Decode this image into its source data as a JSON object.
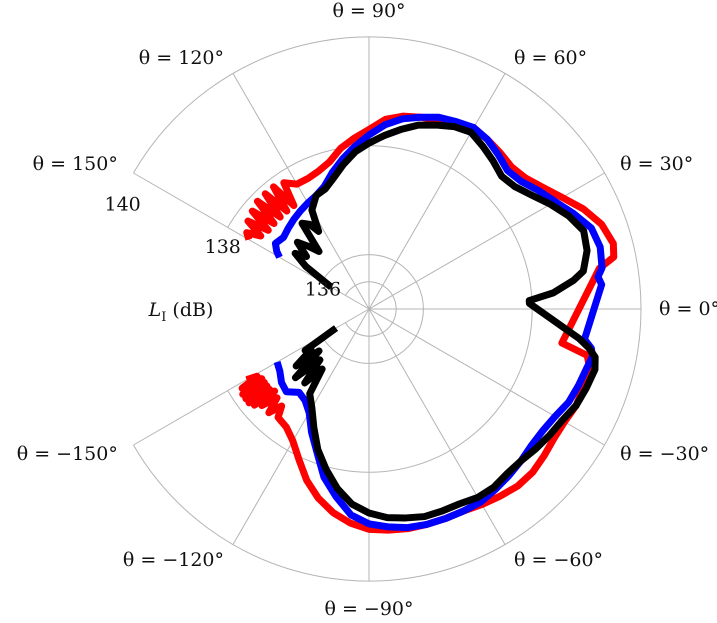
{
  "chart_data": {
    "type": "polar-line",
    "radial_axis": {
      "label": "(dB)",
      "label_symbol": "L",
      "label_subscript": "I",
      "range": [
        135,
        140
      ],
      "ticks": [
        136,
        138,
        140
      ],
      "tick_labels": [
        "136",
        "138",
        "140"
      ]
    },
    "angular_axis": {
      "unit": "deg",
      "sector": [
        -150,
        150
      ],
      "grid_angles": [
        -150,
        -120,
        -90,
        -60,
        -30,
        0,
        30,
        60,
        90,
        120,
        150
      ],
      "tick_labels": [
        "θ = −150°",
        "θ = −120°",
        "θ = −90°",
        "θ = −60°",
        "θ = −30°",
        "θ = 0°",
        "θ = 30°",
        "θ = 60°",
        "θ = 90°",
        "θ = 120°",
        "θ = 150°"
      ]
    },
    "grid": true,
    "series": [
      {
        "color": "#ff0000",
        "linewidth": 7,
        "points": [
          [
            -150,
            137.6
          ],
          [
            -149,
            137.4
          ],
          [
            -148,
            137.75
          ],
          [
            -147,
            137.35
          ],
          [
            -146,
            137.8
          ],
          [
            -145,
            137.35
          ],
          [
            -144,
            137.8
          ],
          [
            -143,
            137.35
          ],
          [
            -142,
            137.8
          ],
          [
            -141,
            137.35
          ],
          [
            -140,
            137.75
          ],
          [
            -139,
            137.3
          ],
          [
            -138,
            137.65
          ],
          [
            -136,
            137.35
          ],
          [
            -134,
            137.65
          ],
          [
            -132,
            137.4
          ],
          [
            -130,
            137.6
          ],
          [
            -125,
            137.65
          ],
          [
            -120,
            137.8
          ],
          [
            -115,
            138.05
          ],
          [
            -110,
            138.35
          ],
          [
            -105,
            138.6
          ],
          [
            -100,
            138.8
          ],
          [
            -95,
            138.95
          ],
          [
            -90,
            139.05
          ],
          [
            -85,
            139.08
          ],
          [
            -80,
            139.1
          ],
          [
            -75,
            139.1
          ],
          [
            -70,
            139.1
          ],
          [
            -65,
            139.1
          ],
          [
            -60,
            139.15
          ],
          [
            -55,
            139.2
          ],
          [
            -50,
            139.25
          ],
          [
            -45,
            139.25
          ],
          [
            -40,
            139.2
          ],
          [
            -35,
            139.15
          ],
          [
            -30,
            139.15
          ],
          [
            -25,
            139.2
          ],
          [
            -20,
            139.2
          ],
          [
            -15,
            139.2
          ],
          [
            -12,
            139.1
          ],
          [
            -10,
            138.6
          ],
          [
            10,
            139.3
          ],
          [
            12,
            139.6
          ],
          [
            15,
            139.65
          ],
          [
            20,
            139.55
          ],
          [
            25,
            139.35
          ],
          [
            30,
            139.1
          ],
          [
            35,
            138.9
          ],
          [
            40,
            138.75
          ],
          [
            45,
            138.7
          ],
          [
            50,
            138.75
          ],
          [
            55,
            138.8
          ],
          [
            60,
            138.85
          ],
          [
            65,
            138.75
          ],
          [
            70,
            138.7
          ],
          [
            75,
            138.65
          ],
          [
            80,
            138.6
          ],
          [
            85,
            138.5
          ],
          [
            90,
            138.3
          ],
          [
            95,
            138.15
          ],
          [
            100,
            138.0
          ],
          [
            105,
            137.8
          ],
          [
            110,
            137.7
          ],
          [
            115,
            137.65
          ],
          [
            120,
            137.65
          ],
          [
            124,
            137.8
          ],
          [
            126,
            137.35
          ],
          [
            128,
            137.85
          ],
          [
            130,
            137.35
          ],
          [
            132,
            137.85
          ],
          [
            134,
            137.35
          ],
          [
            136,
            137.85
          ],
          [
            138,
            137.35
          ],
          [
            140,
            137.8
          ],
          [
            142,
            137.35
          ],
          [
            144,
            137.75
          ],
          [
            146,
            137.4
          ],
          [
            148,
            137.65
          ],
          [
            150,
            137.55
          ]
        ]
      },
      {
        "color": "#0000ff",
        "linewidth": 7,
        "points": [
          [
            -150,
            136.95
          ],
          [
            -145,
            137.0
          ],
          [
            -140,
            137.1
          ],
          [
            -135,
            137.15
          ],
          [
            -130,
            137.0
          ],
          [
            -125,
            137.05
          ],
          [
            -120,
            137.2
          ],
          [
            -115,
            137.5
          ],
          [
            -110,
            137.8
          ],
          [
            -105,
            138.2
          ],
          [
            -100,
            138.5
          ],
          [
            -95,
            138.8
          ],
          [
            -90,
            138.95
          ],
          [
            -85,
            139.02
          ],
          [
            -80,
            139.08
          ],
          [
            -75,
            139.1
          ],
          [
            -70,
            139.1
          ],
          [
            -65,
            139.1
          ],
          [
            -60,
            139.1
          ],
          [
            -55,
            139.05
          ],
          [
            -50,
            139.0
          ],
          [
            -45,
            138.95
          ],
          [
            -40,
            138.9
          ],
          [
            -35,
            138.9
          ],
          [
            -30,
            138.95
          ],
          [
            -25,
            139.05
          ],
          [
            -20,
            139.1
          ],
          [
            -15,
            139.15
          ],
          [
            -12,
            139.2
          ],
          [
            -10,
            139.15
          ],
          [
            -8,
            139.0
          ],
          [
            6,
            139.3
          ],
          [
            8,
            139.25
          ],
          [
            10,
            139.35
          ],
          [
            15,
            139.4
          ],
          [
            20,
            139.35
          ],
          [
            25,
            139.15
          ],
          [
            30,
            138.95
          ],
          [
            35,
            138.8
          ],
          [
            40,
            138.65
          ],
          [
            45,
            138.6
          ],
          [
            50,
            138.7
          ],
          [
            55,
            138.8
          ],
          [
            60,
            138.85
          ],
          [
            65,
            138.8
          ],
          [
            70,
            138.75
          ],
          [
            75,
            138.65
          ],
          [
            80,
            138.55
          ],
          [
            85,
            138.4
          ],
          [
            90,
            138.2
          ],
          [
            95,
            138.0
          ],
          [
            100,
            137.8
          ],
          [
            105,
            137.6
          ],
          [
            110,
            137.4
          ],
          [
            115,
            137.3
          ],
          [
            120,
            137.25
          ],
          [
            125,
            137.2
          ],
          [
            130,
            137.15
          ],
          [
            135,
            137.1
          ],
          [
            140,
            137.05
          ],
          [
            145,
            137.1
          ],
          [
            148,
            137.0
          ],
          [
            150,
            136.9
          ]
        ]
      },
      {
        "color": "#000000",
        "linewidth": 7,
        "points": [
          [
            -150,
            135.7
          ],
          [
            -147,
            136.4
          ],
          [
            -145,
            136.3
          ],
          [
            -142,
            136.7
          ],
          [
            -140,
            136.2
          ],
          [
            -137,
            136.85
          ],
          [
            -134,
            136.3
          ],
          [
            -131,
            136.8
          ],
          [
            -128,
            136.4
          ],
          [
            -125,
            136.9
          ],
          [
            -120,
            137.1
          ],
          [
            -115,
            137.4
          ],
          [
            -110,
            137.75
          ],
          [
            -105,
            138.05
          ],
          [
            -100,
            138.35
          ],
          [
            -95,
            138.6
          ],
          [
            -90,
            138.75
          ],
          [
            -85,
            138.85
          ],
          [
            -80,
            138.9
          ],
          [
            -75,
            138.95
          ],
          [
            -70,
            138.95
          ],
          [
            -65,
            138.95
          ],
          [
            -60,
            139.0
          ],
          [
            -55,
            139.0
          ],
          [
            -50,
            138.95
          ],
          [
            -45,
            138.95
          ],
          [
            -40,
            139.0
          ],
          [
            -35,
            139.05
          ],
          [
            -30,
            139.1
          ],
          [
            -25,
            139.2
          ],
          [
            -20,
            139.25
          ],
          [
            -15,
            139.3
          ],
          [
            -12,
            139.25
          ],
          [
            -10,
            139.1
          ],
          [
            -8,
            138.9
          ],
          [
            2,
            137.95
          ],
          [
            3,
            137.95
          ],
          [
            5,
            138.4
          ],
          [
            8,
            138.8
          ],
          [
            10,
            139.0
          ],
          [
            15,
            139.15
          ],
          [
            20,
            139.2
          ],
          [
            25,
            139.05
          ],
          [
            30,
            138.85
          ],
          [
            35,
            138.65
          ],
          [
            40,
            138.5
          ],
          [
            45,
            138.45
          ],
          [
            50,
            138.55
          ],
          [
            55,
            138.65
          ],
          [
            60,
            138.75
          ],
          [
            65,
            138.7
          ],
          [
            70,
            138.6
          ],
          [
            75,
            138.5
          ],
          [
            80,
            138.35
          ],
          [
            85,
            138.2
          ],
          [
            90,
            138.05
          ],
          [
            95,
            137.9
          ],
          [
            100,
            137.7
          ],
          [
            105,
            137.5
          ],
          [
            110,
            137.35
          ],
          [
            115,
            137.3
          ],
          [
            120,
            137.1
          ],
          [
            123,
            136.7
          ],
          [
            125,
            136.9
          ],
          [
            128,
            137.0
          ],
          [
            131,
            136.4
          ],
          [
            134,
            136.6
          ],
          [
            137,
            136.8
          ],
          [
            140,
            136.5
          ],
          [
            143,
            136.7
          ],
          [
            146,
            136.4
          ],
          [
            150,
            135.8
          ]
        ]
      }
    ]
  }
}
